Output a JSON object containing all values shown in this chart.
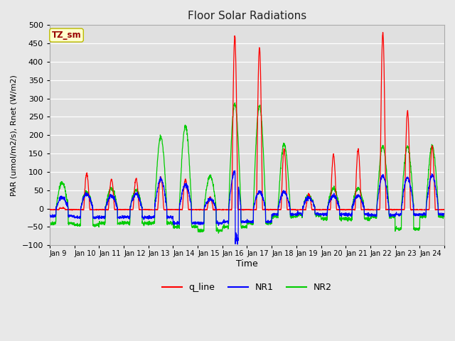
{
  "title": "Floor Solar Radiations",
  "xlabel": "Time",
  "ylabel": "PAR (umol/m2/s), Rnet (W/m2)",
  "ylim": [
    -100,
    500
  ],
  "yticks": [
    -100,
    -50,
    0,
    50,
    100,
    150,
    200,
    250,
    300,
    350,
    400,
    450,
    500
  ],
  "figure_bg": "#e8e8e8",
  "plot_bg": "#e0e0e0",
  "grid_color": "#ffffff",
  "annotation_text": "TZ_sm",
  "annotation_bg": "#ffffcc",
  "annotation_border": "#bbbb00",
  "annotation_text_color": "#990000",
  "legend_labels": [
    "q_line",
    "NR1",
    "NR2"
  ],
  "line_colors": {
    "q_line": "#ff0000",
    "NR1": "#0000ff",
    "NR2": "#00cc00"
  },
  "x_tick_labels": [
    "Jan 9 ",
    "Jan 10",
    "Jan 11",
    "Jan 12",
    "Jan 13",
    "Jan 14",
    "Jan 15",
    "Jan 16",
    "Jan 17",
    "Jan 18",
    "Jan 19",
    "Jan 20",
    "Jan 21",
    "Jan 22",
    "Jan 23",
    "Jan 24"
  ],
  "n_days": 16,
  "n_per_day": 144,
  "q_peaks": [
    0,
    95,
    80,
    80,
    85,
    80,
    30,
    470,
    440,
    160,
    40,
    145,
    160,
    480,
    265,
    170
  ],
  "nr1_peaks": [
    30,
    40,
    35,
    40,
    80,
    65,
    25,
    100,
    45,
    45,
    30,
    35,
    35,
    90,
    85,
    90
  ],
  "nr2_peaks": [
    70,
    45,
    55,
    50,
    195,
    225,
    88,
    285,
    280,
    175,
    35,
    55,
    55,
    170,
    170,
    170
  ],
  "nr1_night": [
    -25,
    -30,
    -30,
    -30,
    -30,
    -50,
    -50,
    -45,
    -45,
    -20,
    -18,
    -20,
    -20,
    -22,
    -20,
    -20
  ],
  "nr2_night": [
    -40,
    -45,
    -40,
    -40,
    -40,
    -50,
    -60,
    -50,
    -40,
    -22,
    -18,
    -28,
    -28,
    -22,
    -55,
    -22
  ]
}
